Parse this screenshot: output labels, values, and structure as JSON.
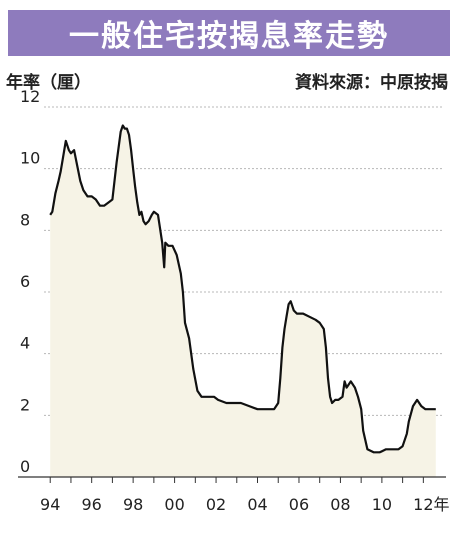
{
  "chart_data": {
    "type": "area",
    "title": "一般住宅按揭息率走勢",
    "ylabel": "年率（厘）",
    "source": "資料來源：中原按揭",
    "x_ticks": [
      "94",
      "96",
      "98",
      "00",
      "02",
      "04",
      "06",
      "08",
      "10",
      "12"
    ],
    "x_unit": "年",
    "y_ticks": [
      0,
      2,
      4,
      6,
      8,
      10,
      12
    ],
    "xlim": [
      1993.7,
      2012.9
    ],
    "ylim": [
      0,
      12
    ],
    "grid": "horizontal dashed",
    "colors": {
      "line": "#111111",
      "fill": "#f6f3e6",
      "grid": "#b8b8b8",
      "title_bg": "#8e7bbd"
    },
    "series": [
      {
        "x": [
          1994.0,
          1994.1,
          1994.25,
          1994.4,
          1994.5,
          1994.6,
          1994.75,
          1994.9,
          1995.0,
          1995.15,
          1995.3,
          1995.45,
          1995.6,
          1995.8,
          1996.0,
          1996.2,
          1996.4,
          1996.6,
          1996.8,
          1997.0,
          1997.2,
          1997.4,
          1997.5,
          1997.6,
          1997.7,
          1997.8,
          1997.9,
          1998.0,
          1998.1,
          1998.2,
          1998.3,
          1998.4,
          1998.5,
          1998.6,
          1998.75,
          1998.9,
          1999.0,
          1999.2,
          1999.4,
          1999.5,
          1999.55,
          1999.7,
          1999.9,
          2000.1,
          2000.3,
          2000.4,
          2000.5,
          2000.7,
          2000.9,
          2001.1,
          2001.3,
          2001.5,
          2001.7,
          2001.9,
          2002.1,
          2002.5,
          2002.9,
          2003.2,
          2003.6,
          2004.0,
          2004.4,
          2004.8,
          2005.0,
          2005.1,
          2005.2,
          2005.3,
          2005.4,
          2005.5,
          2005.6,
          2005.75,
          2005.9,
          2006.2,
          2006.5,
          2006.8,
          2007.0,
          2007.2,
          2007.3,
          2007.4,
          2007.5,
          2007.6,
          2007.75,
          2007.9,
          2008.1,
          2008.2,
          2008.3,
          2008.5,
          2008.7,
          2008.85,
          2009.0,
          2009.1,
          2009.3,
          2009.6,
          2009.9,
          2010.2,
          2010.5,
          2010.8,
          2011.0,
          2011.2,
          2011.3,
          2011.5,
          2011.7,
          2011.9,
          2012.1,
          2012.4,
          2012.6
        ],
        "values": [
          8.5,
          8.6,
          9.2,
          9.6,
          9.9,
          10.3,
          10.9,
          10.6,
          10.5,
          10.6,
          10.1,
          9.6,
          9.3,
          9.1,
          9.1,
          9.0,
          8.8,
          8.8,
          8.9,
          9.0,
          10.2,
          11.2,
          11.4,
          11.3,
          11.3,
          11.1,
          10.6,
          10.0,
          9.4,
          8.9,
          8.5,
          8.6,
          8.3,
          8.2,
          8.3,
          8.5,
          8.6,
          8.5,
          7.6,
          6.8,
          7.6,
          7.5,
          7.5,
          7.2,
          6.6,
          6.0,
          5.0,
          4.5,
          3.5,
          2.8,
          2.6,
          2.6,
          2.6,
          2.6,
          2.5,
          2.4,
          2.4,
          2.4,
          2.3,
          2.2,
          2.2,
          2.2,
          2.4,
          3.2,
          4.2,
          4.8,
          5.2,
          5.6,
          5.7,
          5.4,
          5.3,
          5.3,
          5.2,
          5.1,
          5.0,
          4.8,
          4.2,
          3.2,
          2.6,
          2.4,
          2.5,
          2.5,
          2.6,
          3.1,
          2.9,
          3.1,
          2.9,
          2.6,
          2.2,
          1.5,
          0.9,
          0.8,
          0.8,
          0.9,
          0.9,
          0.9,
          1.0,
          1.4,
          1.8,
          2.3,
          2.5,
          2.3,
          2.2,
          2.2,
          2.2
        ]
      }
    ]
  }
}
